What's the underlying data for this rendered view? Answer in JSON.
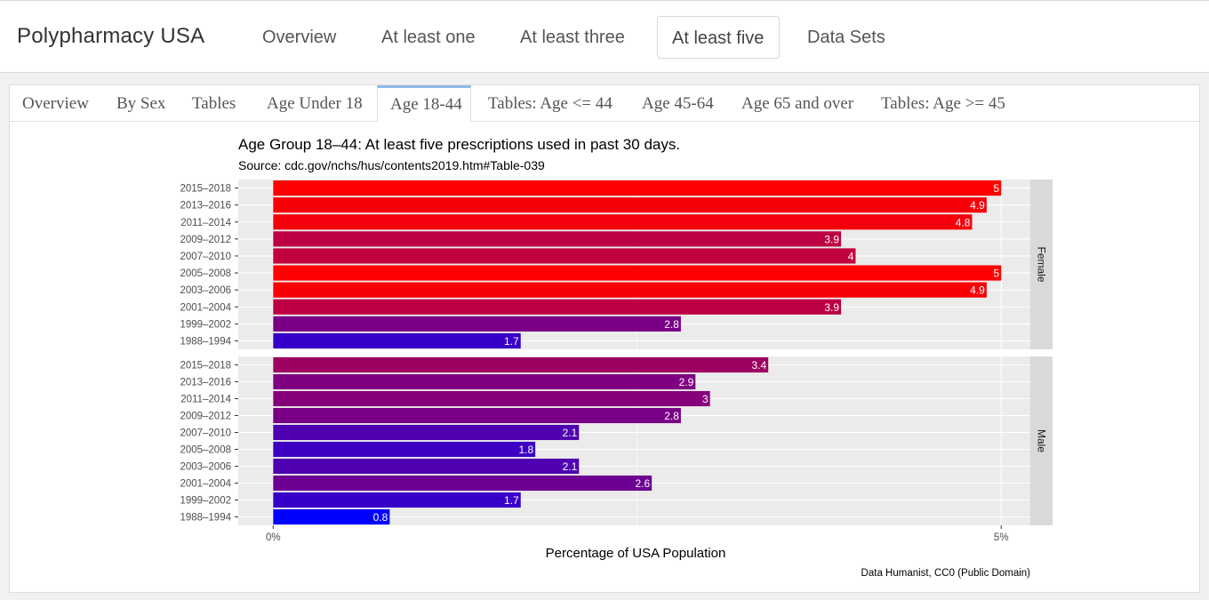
{
  "app": {
    "brand": "Polypharmacy USA",
    "nav": [
      "Overview",
      "At least one",
      "At least three",
      "At least five",
      "Data Sets"
    ],
    "active_nav": "At least five"
  },
  "tabs": {
    "items": [
      "Overview",
      "By Sex",
      "Tables",
      "Age Under 18",
      "Age 18-44",
      "Tables: Age <= 44",
      "Age 45-64",
      "Age 65 and over",
      "Tables: Age >= 45"
    ],
    "active": "Age 18-44"
  },
  "chart_data": {
    "type": "bar",
    "orientation": "horizontal",
    "title": "Age Group 18–44: At least five prescriptions used in past 30 days.",
    "subtitle": "Source: cdc.gov/nchs/hus/contents2019.htm#Table-039",
    "xlabel": "Percentage of USA Population",
    "caption": "Data Humanist, CC0 (Public Domain)",
    "x_ticks": [
      "0%",
      "5%"
    ],
    "xlim": [
      -0.24,
      5.2
    ],
    "categories": [
      "2015–2018",
      "2013–2016",
      "2011–2014",
      "2009–2012",
      "2007–2010",
      "2005–2008",
      "2003–2006",
      "2001–2004",
      "1999–2002",
      "1988–1994"
    ],
    "facets": [
      {
        "name": "Female",
        "values": [
          5,
          4.9,
          4.8,
          3.9,
          4,
          5,
          4.9,
          3.9,
          2.8,
          1.7
        ]
      },
      {
        "name": "Male",
        "values": [
          3.4,
          2.9,
          3,
          2.8,
          2.1,
          1.8,
          2.1,
          2.6,
          1.7,
          0.8
        ]
      }
    ],
    "fill_scale": {
      "low": "#0000ff",
      "high": "#ff0000",
      "min": 0.8,
      "max": 5
    },
    "grid": true,
    "panel_background": "#ebebeb",
    "strip_background": "#d9d9d9"
  }
}
